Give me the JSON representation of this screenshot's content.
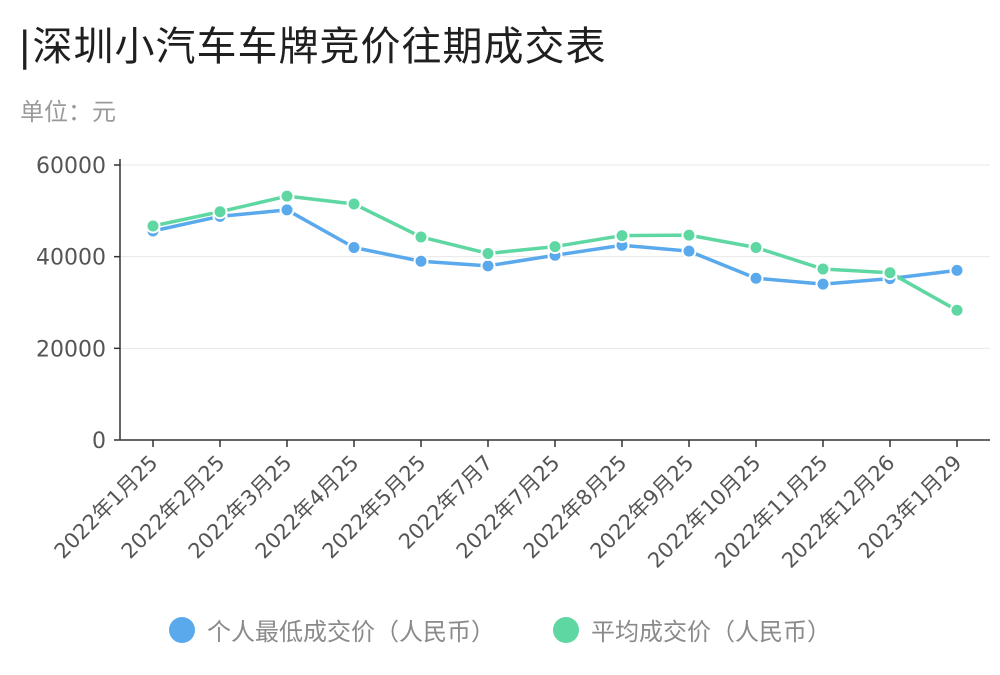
{
  "title": "|深圳小汽车车牌竞价往期成交表",
  "subtitle": "单位：元",
  "colors": {
    "series1": "#5aa9ec",
    "series2": "#5fd7a3",
    "axis": "#333333",
    "grid": "#e8e8e8",
    "tick": "#555555"
  },
  "chart_data": {
    "type": "line",
    "title": "|深圳小汽车车牌竞价往期成交表",
    "ylabel": "单位：元",
    "xlabel": "",
    "ylim": [
      0,
      60000
    ],
    "yticks": [
      "0",
      "20000",
      "40000",
      "60000"
    ],
    "grid": true,
    "legend": "bottom-center",
    "categories": [
      "2022年1月25",
      "2022年2月25",
      "2022年3月25",
      "2022年4月25",
      "2022年5月25",
      "2022年7月7",
      "2022年7月25",
      "2022年8月25",
      "2022年9月25",
      "2022年10月25",
      "2022年11月25",
      "2022年12月26",
      "2023年1月29"
    ],
    "series": [
      {
        "name": "个人最低成交价（人民币）",
        "color": "#5aa9ec",
        "values": [
          45600,
          48800,
          50200,
          42000,
          39000,
          38000,
          40300,
          42500,
          41200,
          35300,
          34000,
          35200,
          37000
        ]
      },
      {
        "name": "平均成交价（人民币）",
        "color": "#5fd7a3",
        "values": [
          46700,
          49800,
          53200,
          51500,
          44300,
          40700,
          42200,
          44600,
          44700,
          42000,
          37300,
          36500,
          28300
        ]
      }
    ]
  }
}
